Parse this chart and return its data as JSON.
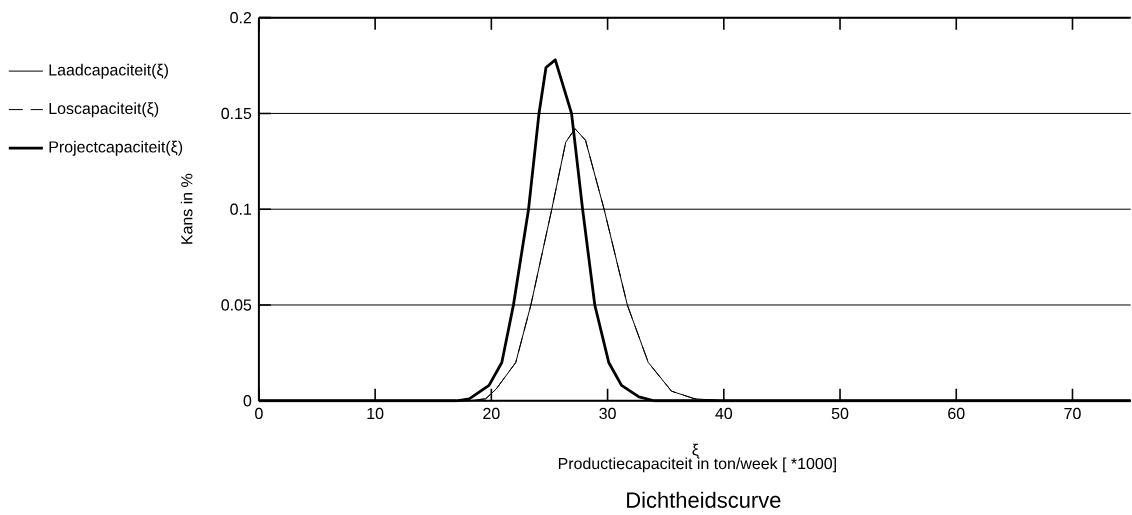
{
  "chart_data": {
    "type": "line",
    "title": "Dichtheidscurve",
    "xlabel": "Productiecapaciteit in ton/week [ *1000]",
    "ylabel": "Kans in %",
    "annotations": [
      "ξ"
    ],
    "xlim": [
      0,
      75
    ],
    "xticks": [
      0,
      10,
      20,
      30,
      40,
      50,
      60,
      70
    ],
    "ylim": [
      0,
      0.2
    ],
    "yticks": [
      0,
      0.05,
      0.1,
      0.15,
      0.2
    ],
    "grid": "y",
    "legend": "left",
    "marker": "none",
    "series": [
      {
        "name": "Laadcapaciteit(ξ)",
        "color": "#000000",
        "line_style": "solid",
        "x": [
          0,
          18,
          19.5,
          20.4,
          22.1,
          23.4,
          25.2,
          26.4,
          27.2,
          28.1,
          29.7,
          31.7,
          33.5,
          35.5,
          37.5,
          40,
          75
        ],
        "values": [
          0,
          0,
          0.001,
          0.006,
          0.02,
          0.05,
          0.1,
          0.135,
          0.142,
          0.136,
          0.1,
          0.05,
          0.02,
          0.005,
          0.001,
          0,
          0
        ]
      },
      {
        "name": "Loscapaciteit(ξ)",
        "color": "#000000",
        "line_style": "dashed",
        "x": [
          0,
          18,
          19.5,
          20.4,
          22.1,
          23.4,
          25.2,
          26.4,
          27.2,
          28.1,
          29.7,
          31.7,
          33.5,
          35.5,
          37.5,
          40,
          75
        ],
        "values": [
          0,
          0,
          0.001,
          0.006,
          0.02,
          0.05,
          0.1,
          0.135,
          0.142,
          0.136,
          0.1,
          0.05,
          0.02,
          0.005,
          0.001,
          0,
          0
        ]
      },
      {
        "name": "Projectcapaciteit(ξ)",
        "color": "#000000",
        "line_style": "solid",
        "x": [
          0,
          17,
          18.1,
          19.8,
          20.9,
          21.9,
          23.2,
          24.1,
          24.7,
          25.5,
          26.9,
          27.85,
          28.9,
          30.1,
          31.2,
          32.7,
          34,
          75
        ],
        "values": [
          0,
          0,
          0.001,
          0.008,
          0.02,
          0.05,
          0.1,
          0.15,
          0.174,
          0.178,
          0.15,
          0.1,
          0.05,
          0.02,
          0.008,
          0.002,
          0,
          0
        ]
      }
    ]
  }
}
